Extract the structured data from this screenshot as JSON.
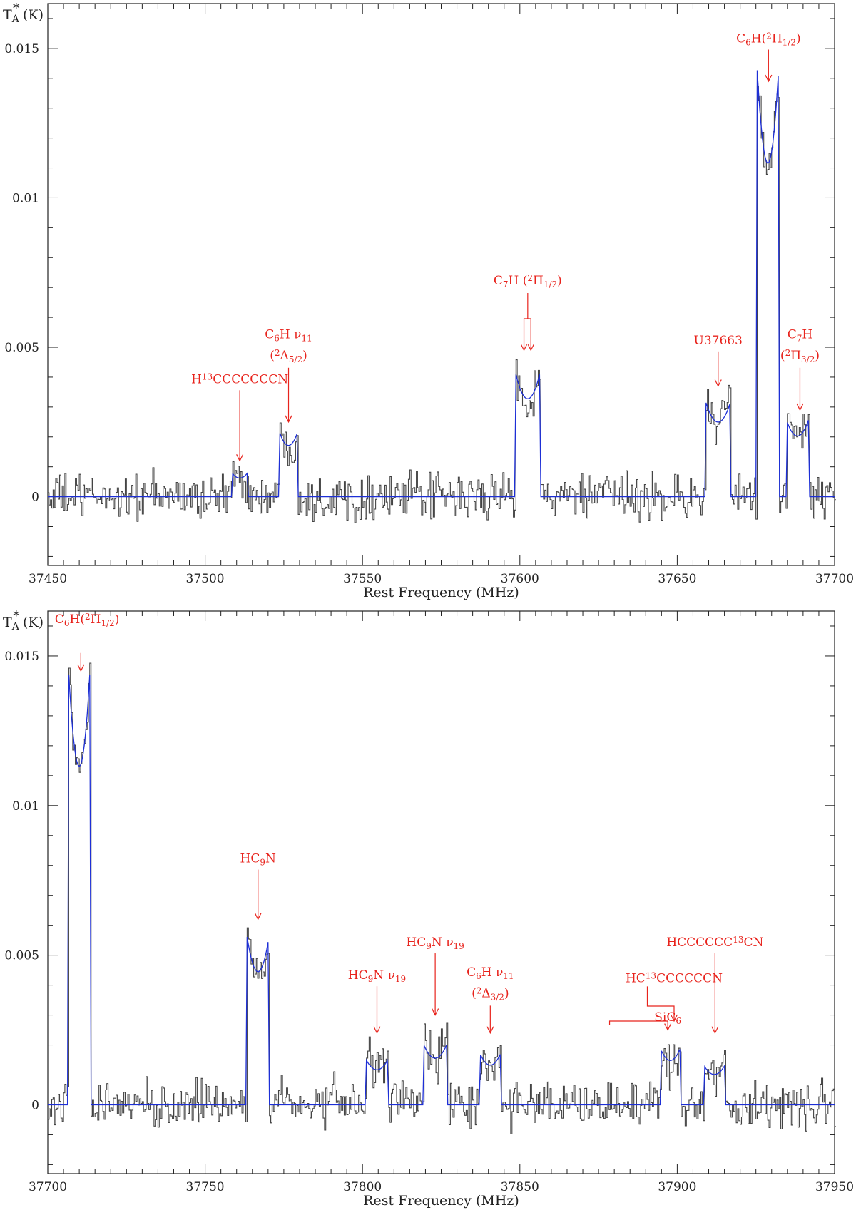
{
  "colors": {
    "observed": "#444444",
    "model": "#1d2fd6",
    "annotation": "#e8231c",
    "axis": "#222222"
  },
  "chart_data": [
    {
      "type": "line",
      "xlabel": "Rest Frequency (MHz)",
      "ylabel": {
        "main": "T",
        "sub": "A",
        "sup": "*",
        "unit": "(K)"
      },
      "xlim": [
        37450,
        37700
      ],
      "ylim": [
        -0.0023,
        0.0165
      ],
      "xticks": [
        37450,
        37500,
        37550,
        37600,
        37650,
        37700
      ],
      "yticks": [
        0,
        0.005,
        0.01,
        0.015
      ],
      "ytick_labels": [
        "0",
        "0.005",
        "0.01",
        "0.015"
      ],
      "noise_rms": 0.0006,
      "series": [
        {
          "role": "model",
          "lines": [
            {
              "freq": 37511.0,
              "peak": 0.0008,
              "width": 2.5
            },
            {
              "freq": 37526.5,
              "peak": 0.0022,
              "width": 3.0
            },
            {
              "freq": 37602.5,
              "peak": 0.0042,
              "width": 4.0
            },
            {
              "freq": 37663.0,
              "peak": 0.0032,
              "width": 4.0
            },
            {
              "freq": 37678.8,
              "peak": 0.0143,
              "width": 3.4
            },
            {
              "freq": 37688.2,
              "peak": 0.0026,
              "width": 3.6
            }
          ]
        }
      ],
      "annotations": [
        {
          "id": "h13c",
          "label": [
            [
              "H",
              ""
            ],
            [
              "13",
              "sup"
            ],
            [
              "CCCCCCCN",
              ""
            ]
          ],
          "x": 37511.0,
          "y": 0.0012,
          "line1_y": 0.0038
        },
        {
          "id": "c6h-nu11",
          "label": [
            [
              "C",
              ""
            ],
            [
              "6",
              "sub"
            ],
            [
              "H  ",
              ""
            ],
            [
              "ν",
              ""
            ],
            [
              "11",
              "sub"
            ]
          ],
          "label2": [
            [
              "(",
              ""
            ],
            [
              "2",
              "sup"
            ],
            [
              "Δ",
              ""
            ],
            [
              "5/2",
              "sub"
            ],
            [
              ")",
              ""
            ]
          ],
          "x": 37526.5,
          "y": 0.0025,
          "line1_y": 0.0053,
          "line2_y": 0.0046
        },
        {
          "id": "c7h-12",
          "label": [
            [
              "C",
              ""
            ],
            [
              "7",
              "sub"
            ],
            [
              "H  (",
              ""
            ],
            [
              "2",
              "sup"
            ],
            [
              "Π",
              ""
            ],
            [
              "1/2",
              "sub"
            ],
            [
              ")",
              ""
            ]
          ],
          "x": 37602.5,
          "y": 0.0049,
          "bracket": [
            37601.3,
            37603.5
          ],
          "line1_y": 0.0071
        },
        {
          "id": "u37663",
          "label": [
            [
              "U37663",
              ""
            ]
          ],
          "x": 37663.0,
          "y": 0.0037,
          "line1_y": 0.0051
        },
        {
          "id": "c6h-12-top",
          "label": [
            [
              "C",
              ""
            ],
            [
              "6",
              "sub"
            ],
            [
              "H(",
              ""
            ],
            [
              "2",
              "sup"
            ],
            [
              "Π",
              ""
            ],
            [
              "1/2",
              "sub"
            ],
            [
              ")",
              ""
            ]
          ],
          "x": 37679.0,
          "y": 0.0139,
          "line1_y": 0.0152
        },
        {
          "id": "c7h-32",
          "label": [
            [
              "C",
              ""
            ],
            [
              "7",
              "sub"
            ],
            [
              "H",
              ""
            ]
          ],
          "label2": [
            [
              "(",
              ""
            ],
            [
              "2",
              "sup"
            ],
            [
              "Π",
              ""
            ],
            [
              "3/2",
              "sub"
            ],
            [
              ")",
              ""
            ]
          ],
          "x": 37689.0,
          "y": 0.0029,
          "line1_y": 0.0053,
          "line2_y": 0.0046
        }
      ]
    },
    {
      "type": "line",
      "xlabel": "Rest Frequency (MHz)",
      "ylabel": {
        "main": "T",
        "sub": "A",
        "sup": "*",
        "unit": "(K)"
      },
      "xlim": [
        37700,
        37950
      ],
      "ylim": [
        -0.0023,
        0.0165
      ],
      "xticks": [
        37700,
        37750,
        37800,
        37850,
        37900,
        37950
      ],
      "yticks": [
        0,
        0.005,
        0.01,
        0.015
      ],
      "ytick_labels": [
        "0",
        "0.005",
        "0.01",
        "0.015"
      ],
      "noise_rms": 0.0006,
      "series": [
        {
          "role": "model",
          "lines": [
            {
              "freq": 37710.0,
              "peak": 0.0145,
              "width": 3.4
            },
            {
              "freq": 37766.8,
              "peak": 0.0057,
              "width": 3.6
            },
            {
              "freq": 37804.6,
              "peak": 0.0015,
              "width": 3.4
            },
            {
              "freq": 37823.1,
              "peak": 0.002,
              "width": 3.6
            },
            {
              "freq": 37840.6,
              "peak": 0.0017,
              "width": 3.2
            },
            {
              "freq": 37897.8,
              "peak": 0.0019,
              "width": 3.2
            },
            {
              "freq": 37911.8,
              "peak": 0.0013,
              "width": 3.2
            }
          ]
        }
      ],
      "annotations": [
        {
          "id": "c6h-12-bottom",
          "label": [
            [
              "C",
              ""
            ],
            [
              "6",
              "sub"
            ],
            [
              "H(",
              ""
            ],
            [
              "2",
              "sup"
            ],
            [
              "Π",
              ""
            ],
            [
              "1/2",
              "sub"
            ],
            [
              ")",
              ""
            ]
          ],
          "x": 37710.5,
          "y": 0.0145,
          "line1_y": 0.0161,
          "text_x": 37712.5,
          "stem_top": 0.0151
        },
        {
          "id": "hc9n",
          "label": [
            [
              "HC",
              ""
            ],
            [
              "9",
              "sub"
            ],
            [
              "N",
              ""
            ]
          ],
          "x": 37766.8,
          "y": 0.0062,
          "line1_y": 0.0081
        },
        {
          "id": "hc9n-nu19-a",
          "label": [
            [
              "HC",
              ""
            ],
            [
              "9",
              "sub"
            ],
            [
              "N  ",
              ""
            ],
            [
              "ν",
              ""
            ],
            [
              "19",
              "sub"
            ]
          ],
          "x": 37804.6,
          "y": 0.0024,
          "line1_y": 0.0042
        },
        {
          "id": "hc9n-nu19-b",
          "label": [
            [
              "HC",
              ""
            ],
            [
              "9",
              "sub"
            ],
            [
              "N  ",
              ""
            ],
            [
              "ν",
              ""
            ],
            [
              "19",
              "sub"
            ]
          ],
          "x": 37823.1,
          "y": 0.003,
          "line1_y": 0.0053
        },
        {
          "id": "c6h-nu11-b",
          "label": [
            [
              "C",
              ""
            ],
            [
              "6",
              "sub"
            ],
            [
              "H  ",
              ""
            ],
            [
              "ν",
              ""
            ],
            [
              "11",
              "sub"
            ]
          ],
          "label2": [
            [
              "(",
              ""
            ],
            [
              "2",
              "sup"
            ],
            [
              "Δ",
              ""
            ],
            [
              "3/2",
              "sub"
            ],
            [
              ")",
              ""
            ]
          ],
          "x": 37840.6,
          "y": 0.0024,
          "line1_y": 0.0043,
          "line2_y": 0.0036
        },
        {
          "id": "hc13-b",
          "label": [
            [
              "HC",
              ""
            ],
            [
              "13",
              "sup"
            ],
            [
              "CCCCCCN",
              ""
            ]
          ],
          "x": 37899.0,
          "y": 0.0028,
          "line1_y": 0.0041,
          "elbow": [
            37890.5,
            0.0033
          ]
        },
        {
          "id": "sic6",
          "label": [
            [
              "SiC",
              ""
            ],
            [
              "6",
              "sub"
            ]
          ],
          "x": 37897.0,
          "y": 0.0025,
          "line1_y": 0.0028,
          "elbow": [
            37878.5,
            0.0028
          ]
        },
        {
          "id": "hcccccc13cn",
          "label": [
            [
              "HCCCCCC",
              ""
            ],
            [
              "13",
              "sup"
            ],
            [
              "CN",
              ""
            ]
          ],
          "x": 37912.0,
          "y": 0.0024,
          "line1_y": 0.0053
        }
      ]
    }
  ]
}
